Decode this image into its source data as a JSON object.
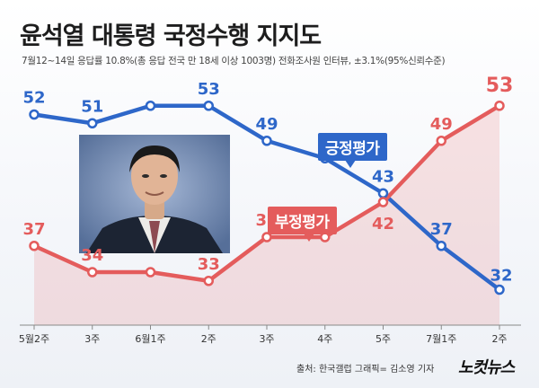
{
  "header": {
    "title": "윤석열 대통령 국정수행 지지도",
    "subtitle": "7월12~14일 응답률 10.8%(총 응답 전국 만 18세 이상 1003명) 전화조사원 인터뷰, ±3.1%(95%신뢰수준)"
  },
  "chart_data": {
    "type": "line",
    "title": "윤석열 대통령 국정수행 지지도",
    "categories": [
      "5월2주",
      "3주",
      "6월1주",
      "2주",
      "3주",
      "4주",
      "5주",
      "7월1주",
      "2주"
    ],
    "series": [
      {
        "name": "긍정평가",
        "values": [
          52,
          51,
          53,
          53,
          49,
          47,
          43,
          37,
          32
        ],
        "color": "#2e67c9"
      },
      {
        "name": "부정평가",
        "values": [
          37,
          34,
          34,
          33,
          38,
          38,
          42,
          49,
          53
        ],
        "color": "#e45c5c"
      }
    ],
    "data_labels": {
      "긍정평가": [
        "52",
        "51",
        "",
        "53",
        "49",
        "",
        "43",
        "37",
        "32"
      ],
      "부정평가": [
        "37",
        "34",
        "",
        "33",
        "38",
        "",
        "42",
        "49",
        "53"
      ]
    },
    "ylim": [
      30,
      54
    ],
    "grid": false,
    "area_fill_series": "부정평가"
  },
  "callouts": {
    "approve": "긍정평가",
    "disapprove": "부정평가"
  },
  "footer": {
    "credit": "출처: 한국갤럽   그래픽= 김소영 기자",
    "logo": "노컷뉴스"
  }
}
